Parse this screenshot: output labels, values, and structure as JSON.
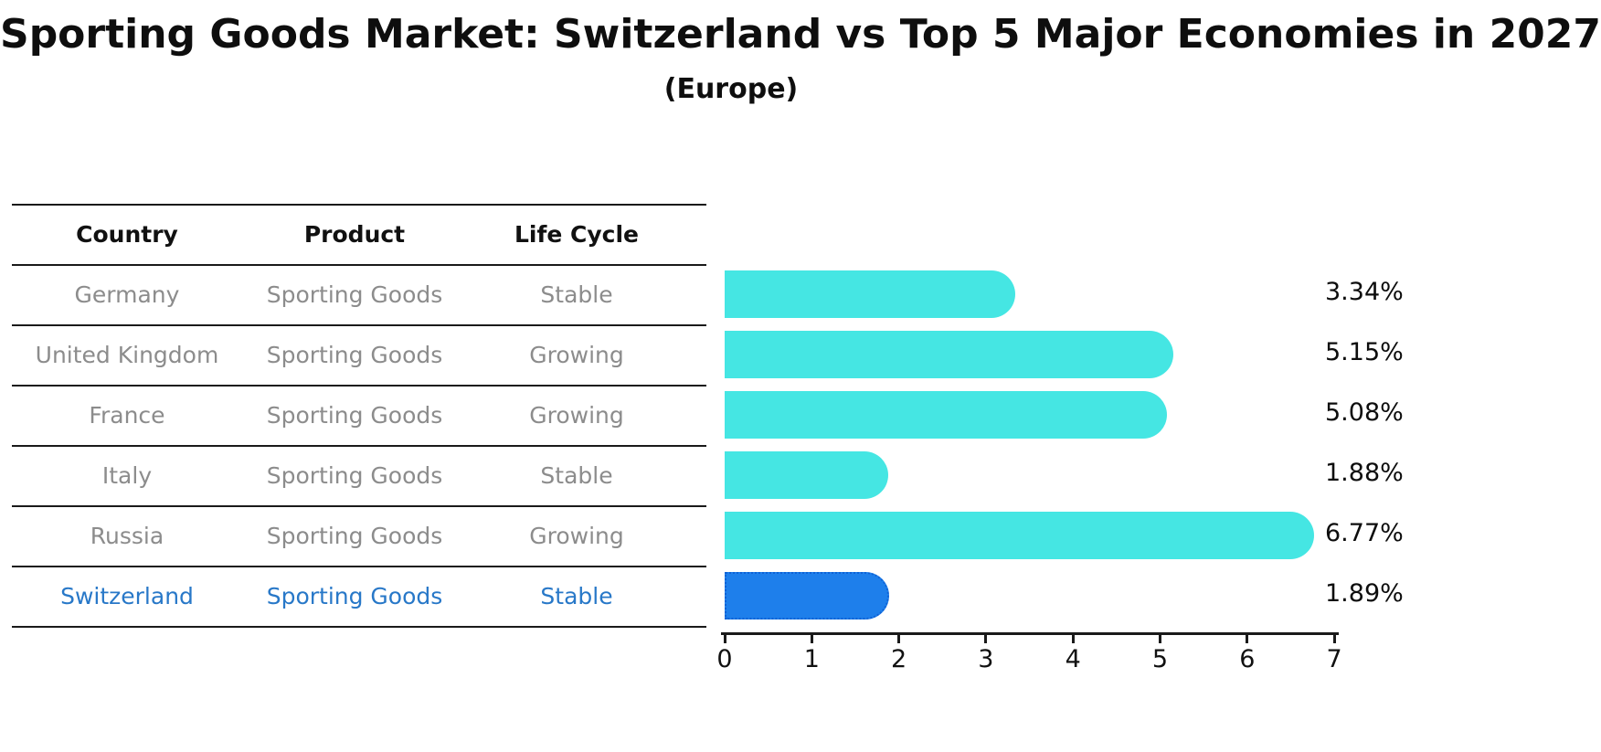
{
  "header": {
    "title": "Sporting Goods Market: Switzerland vs Top 5 Major Economies in 2027",
    "subtitle": "(Europe)"
  },
  "table": {
    "headers": [
      "Country",
      "Product",
      "Life Cycle"
    ],
    "rows": [
      {
        "country": "Germany",
        "product": "Sporting Goods",
        "life_cycle": "Stable",
        "highlighted": false
      },
      {
        "country": "United Kingdom",
        "product": "Sporting Goods",
        "life_cycle": "Growing",
        "highlighted": false
      },
      {
        "country": "France",
        "product": "Sporting Goods",
        "life_cycle": "Growing",
        "highlighted": false
      },
      {
        "country": "Italy",
        "product": "Sporting Goods",
        "life_cycle": "Stable",
        "highlighted": false
      },
      {
        "country": "Russia",
        "product": "Sporting Goods",
        "life_cycle": "Growing",
        "highlighted": false
      },
      {
        "country": "Switzerland",
        "product": "Sporting Goods",
        "life_cycle": "Stable",
        "highlighted": true
      }
    ]
  },
  "chart_data": {
    "type": "bar",
    "orientation": "horizontal",
    "title": "Sporting Goods Market: Switzerland vs Top 5 Major Economies in 2027",
    "subtitle": "(Europe)",
    "categories": [
      "Germany",
      "United Kingdom",
      "France",
      "Italy",
      "Russia",
      "Switzerland"
    ],
    "values": [
      3.34,
      5.15,
      5.08,
      1.88,
      6.77,
      1.89
    ],
    "value_labels": [
      "3.34%",
      "5.15%",
      "5.08%",
      "1.88%",
      "6.77%",
      "1.89%"
    ],
    "xlabel": "",
    "ylabel": "",
    "xlim": [
      0,
      7
    ],
    "x_ticks": [
      "0",
      "1",
      "2",
      "3",
      "4",
      "5",
      "6",
      "7"
    ],
    "grid": false,
    "legend": "none",
    "highlight_category": "Switzerland",
    "colors": {
      "bar_default": "#45E6E3",
      "bar_highlight": "#1E7FEB",
      "bar_highlight_border": "#0F62D6",
      "highlight_text": "#2878C8",
      "row_text": "#8C8C8C",
      "axis": "#1A1A1A"
    }
  }
}
